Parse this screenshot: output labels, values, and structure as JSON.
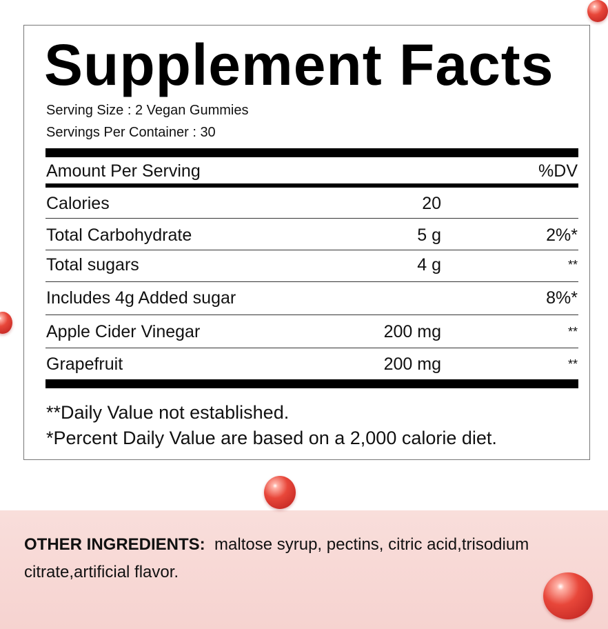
{
  "title": "Supplement Facts",
  "serving_size": "Serving Size : 2 Vegan Gummies",
  "servings_per_container": "Servings Per Container : 30",
  "header": {
    "amount": "Amount Per Serving",
    "dv": "%DV"
  },
  "rows": [
    {
      "name": "Calories",
      "amount": "20",
      "dv": ""
    },
    {
      "name": "Total Carbohydrate",
      "amount": "5 g",
      "dv": "2%*"
    },
    {
      "name": "Total sugars",
      "amount": "4 g",
      "dv": "**"
    },
    {
      "name": "Includes 4g Added sugar",
      "amount": "",
      "dv": "8%*"
    },
    {
      "name": "Apple Cider Vinegar",
      "amount": "200 mg",
      "dv": "**"
    },
    {
      "name": "Grapefruit",
      "amount": "200 mg",
      "dv": "**"
    }
  ],
  "footnotes": [
    "**Daily Value not established.",
    "*Percent Daily Value are based on a 2,000 calorie diet."
  ],
  "other_ingredients": {
    "label": "OTHER INGREDIENTS:",
    "text": "maltose syrup, pectins, citric acid,trisodium citrate,artificial flavor."
  },
  "colors": {
    "band": "#f7d6d3",
    "bead": "#e8473a"
  }
}
